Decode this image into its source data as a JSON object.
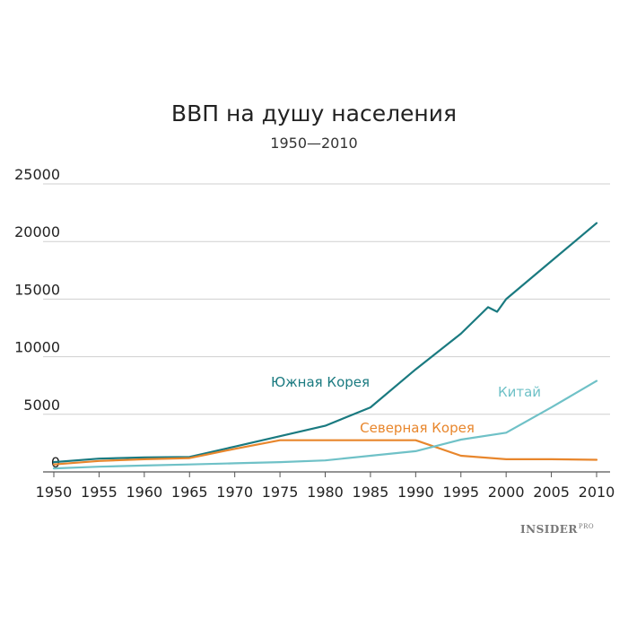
{
  "chart_data": {
    "type": "line",
    "title": "ВВП на душу населения",
    "subtitle": "1950—2010",
    "xlabel": "",
    "ylabel": "",
    "xlim": [
      1950,
      2010
    ],
    "ylim": [
      0,
      25000
    ],
    "x_ticks": [
      "1950",
      "1955",
      "1960",
      "1965",
      "1970",
      "1975",
      "1980",
      "1985",
      "1990",
      "1995",
      "2000",
      "2005",
      "2010"
    ],
    "y_ticks": [
      "0",
      "5000",
      "10000",
      "15000",
      "20000",
      "25000"
    ],
    "grid": true,
    "series": [
      {
        "name": "Южная Корея",
        "color": "#1a7a80",
        "x": [
          1950,
          1955,
          1960,
          1965,
          1970,
          1975,
          1980,
          1985,
          1990,
          1995,
          1998,
          1999,
          2000,
          2005,
          2010
        ],
        "y": [
          850,
          1150,
          1250,
          1300,
          2200,
          3100,
          4000,
          5600,
          8900,
          12000,
          14300,
          13900,
          15000,
          18300,
          21600
        ]
      },
      {
        "name": "Северная Корея",
        "color": "#e8862c",
        "x": [
          1950,
          1955,
          1960,
          1965,
          1970,
          1975,
          1980,
          1985,
          1990,
          1995,
          2000,
          2005,
          2010
        ],
        "y": [
          650,
          950,
          1100,
          1200,
          2000,
          2750,
          2750,
          2750,
          2750,
          1400,
          1100,
          1100,
          1050
        ]
      },
      {
        "name": "Китай",
        "color": "#6fc1c7",
        "x": [
          1950,
          1955,
          1960,
          1965,
          1970,
          1975,
          1980,
          1985,
          1990,
          1995,
          2000,
          2005,
          2010
        ],
        "y": [
          300,
          450,
          550,
          650,
          750,
          850,
          1000,
          1400,
          1800,
          2800,
          3400,
          5600,
          7900
        ]
      }
    ]
  },
  "watermark": {
    "main": "INSIDER",
    "sub": "PRO"
  }
}
